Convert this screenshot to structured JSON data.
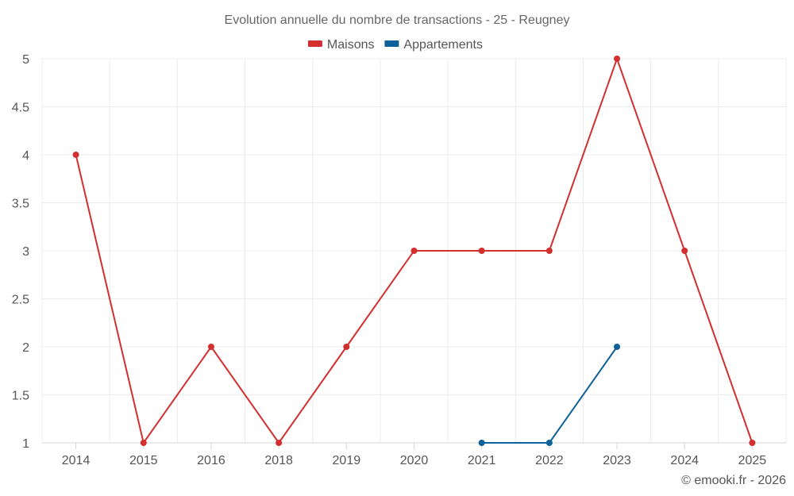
{
  "chart_data": {
    "type": "line",
    "title": "Evolution annuelle du nombre de transactions - 25 - Reugney",
    "categories": [
      "2014",
      "2015",
      "2016",
      "2018",
      "2019",
      "2020",
      "2021",
      "2022",
      "2023",
      "2024",
      "2025"
    ],
    "y_ticks": [
      "1",
      "1.5",
      "2",
      "2.5",
      "3",
      "3.5",
      "4",
      "4.5",
      "5"
    ],
    "ylim": [
      1,
      5
    ],
    "grid": true,
    "legend_position": "top-center",
    "series": [
      {
        "name": "Maisons",
        "color": "#d32f2f",
        "values": [
          4,
          1,
          2,
          1,
          2,
          3,
          3,
          3,
          5,
          3,
          1
        ]
      },
      {
        "name": "Appartements",
        "color": "#0d6199",
        "values": [
          null,
          null,
          null,
          null,
          null,
          null,
          1,
          1,
          2,
          null,
          null
        ]
      }
    ]
  },
  "footer": "© emooki.fr - 2026"
}
